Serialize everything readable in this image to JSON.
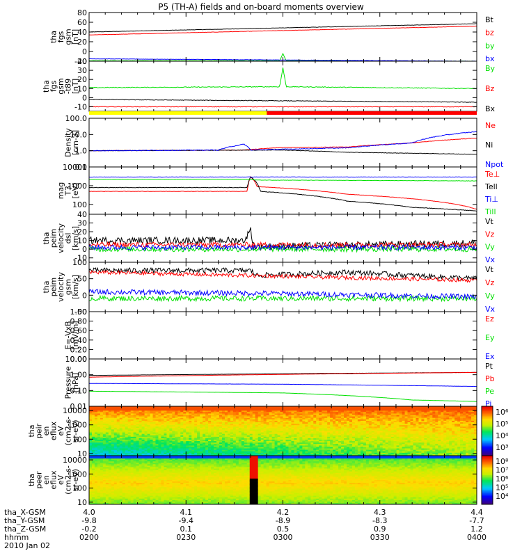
{
  "chart_data": {
    "type": "line",
    "title": "P5 (TH-A) fields and on-board moments overview",
    "x_axis": {
      "rows": [
        {
          "label": "tha_X-GSM",
          "values": [
            "4.0",
            "4.1",
            "4.2",
            "4.3",
            "4.4"
          ]
        },
        {
          "label": "tha_Y-GSM",
          "values": [
            "-9.8",
            "-9.4",
            "-8.9",
            "-8.3",
            "-7.7"
          ]
        },
        {
          "label": "tha_Z-GSM",
          "values": [
            "-0.2",
            "0.1",
            "0.5",
            "0.9",
            "1.2"
          ]
        },
        {
          "label": "hhmm",
          "values": [
            "0200",
            "0230",
            "0300",
            "0330",
            "0400"
          ]
        }
      ],
      "date": "2010 Jan 02"
    },
    "time_range": [
      0,
      120
    ],
    "panels": [
      {
        "id": "fgs_gsm",
        "ylabel": [
          "tha",
          "fgs",
          "gsm",
          "[nT]"
        ],
        "yrange": [
          -20,
          80
        ],
        "ticks": [
          -20,
          0,
          20,
          40,
          60,
          80
        ],
        "series": [
          {
            "name": "Bt",
            "color": "#000000",
            "profile": [
              [
                0,
                40
              ],
              [
                120,
                57
              ]
            ],
            "noise": 0.3
          },
          {
            "name": "bz",
            "color": "#ff0000",
            "profile": [
              [
                0,
                34
              ],
              [
                120,
                52
              ]
            ],
            "noise": 0.3
          },
          {
            "name": "by",
            "color": "#00e000",
            "profile": [
              [
                0,
                -19
              ],
              [
                59,
                -19
              ],
              [
                60,
                -4
              ],
              [
                61,
                -19
              ],
              [
                120,
                -20
              ]
            ],
            "noise": 0.3
          },
          {
            "name": "bx",
            "color": "#0000ff",
            "profile": [
              [
                0,
                -15
              ],
              [
                120,
                -20
              ]
            ],
            "noise": 0.3
          }
        ]
      },
      {
        "id": "fgs_gsm_t89",
        "ylabel": [
          "tha",
          "fgs",
          "gsm",
          "-t89",
          "[nT]"
        ],
        "yrange": [
          -15,
          40
        ],
        "ticks": [
          -10,
          0,
          10,
          20,
          30,
          40
        ],
        "series": [
          {
            "name": "By",
            "color": "#00e000",
            "profile": [
              [
                0,
                11
              ],
              [
                59,
                12
              ],
              [
                60,
                33
              ],
              [
                61,
                12
              ],
              [
                120,
                10
              ]
            ],
            "noise": 0.4
          },
          {
            "name": "Bz",
            "color": "#ff0000",
            "profile": [
              [
                0,
                -10
              ],
              [
                120,
                -10
              ]
            ],
            "noise": 0.3
          },
          {
            "name": "Bx",
            "color": "#000000",
            "profile": [
              [
                0,
                -2
              ],
              [
                120,
                -5
              ]
            ],
            "noise": 0.3
          }
        ]
      },
      {
        "id": "density",
        "ylabel": [
          "Density",
          "[cm-3]"
        ],
        "scale": "log",
        "yrange": [
          0.1,
          100
        ],
        "ticks": [
          0.1,
          1,
          10,
          100
        ],
        "tick_labels": [
          "0.1",
          "1.0",
          "10.0",
          "100.0"
        ],
        "series": [
          {
            "name": "Ne",
            "color": "#ff0000",
            "profile": [
              [
                0,
                1.0
              ],
              [
                48,
                1.1
              ],
              [
                60,
                1.6
              ],
              [
                80,
                1.7
              ],
              [
                100,
                3.0
              ],
              [
                120,
                6.0
              ]
            ],
            "noise": 0.03
          },
          {
            "name": "Ni",
            "color": "#000000",
            "profile": [
              [
                0,
                1.0
              ],
              [
                60,
                1.1
              ],
              [
                80,
                0.8
              ],
              [
                100,
                0.7
              ],
              [
                120,
                0.6
              ]
            ],
            "noise": 0.03
          },
          {
            "name": "Npot",
            "color": "#0000ff",
            "profile": [
              [
                0,
                1.0
              ],
              [
                40,
                1.1
              ],
              [
                48,
                2.5
              ],
              [
                50,
                1.1
              ],
              [
                80,
                1.5
              ],
              [
                100,
                3.0
              ],
              [
                120,
                15
              ]
            ],
            "noise": 0.05
          }
        ]
      },
      {
        "id": "temperature",
        "ylabel": [
          "mag",
          "T3",
          "[eV]"
        ],
        "scale": "log",
        "yrange": [
          30,
          10000
        ],
        "ticks": [
          100,
          1000,
          10000
        ],
        "tick_labels": [
          "100",
          "1000",
          "10000"
        ],
        "series": [
          {
            "name": "Te⊥",
            "color": "#ff0000",
            "profile": [
              [
                0,
                500
              ],
              [
                49,
                500
              ],
              [
                50,
                3000
              ],
              [
                52,
                900
              ],
              [
                80,
                350
              ],
              [
                100,
                200
              ],
              [
                120,
                55
              ]
            ],
            "noise": 0.02
          },
          {
            "name": "Tell",
            "color": "#000000",
            "profile": [
              [
                0,
                800
              ],
              [
                49,
                800
              ],
              [
                50,
                3000
              ],
              [
                53,
                500
              ],
              [
                80,
                150
              ],
              [
                100,
                70
              ],
              [
                120,
                45
              ]
            ],
            "noise": 0.03
          },
          {
            "name": "Ti⊥",
            "color": "#0000ff",
            "profile": [
              [
                0,
                2900
              ],
              [
                120,
                2900
              ]
            ],
            "noise": 0.02
          },
          {
            "name": "Till",
            "color": "#00e000",
            "profile": [
              [
                0,
                2200
              ],
              [
                49,
                2200
              ],
              [
                52,
                2000
              ],
              [
                120,
                1800
              ]
            ],
            "noise": 0.02
          }
        ]
      },
      {
        "id": "peim_velocity_1",
        "ylabel": [
          "tha",
          "peim",
          "velocity",
          "dsl",
          "[km/s]"
        ],
        "yrange": [
          -15,
          40
        ],
        "ticks": [
          -10,
          0,
          10,
          20,
          30,
          40
        ],
        "series": [
          {
            "name": "Vt",
            "color": "#000000",
            "profile": [
              [
                0,
                10
              ],
              [
                48,
                10
              ],
              [
                50,
                22
              ],
              [
                51,
                3
              ],
              [
                120,
                7
              ]
            ],
            "noise": 4
          },
          {
            "name": "Vz",
            "color": "#ff0000",
            "profile": [
              [
                0,
                5
              ],
              [
                120,
                5
              ]
            ],
            "noise": 3
          },
          {
            "name": "Vy",
            "color": "#00e000",
            "profile": [
              [
                0,
                0
              ],
              [
                120,
                0
              ]
            ],
            "noise": 3
          },
          {
            "name": "Vx",
            "color": "#0000ff",
            "profile": [
              [
                0,
                2
              ],
              [
                120,
                2
              ]
            ],
            "noise": 3
          }
        ]
      },
      {
        "id": "peim_velocity_2",
        "ylabel": [
          "tha",
          "peim",
          "velocity",
          "gsm",
          "[km/s]"
        ],
        "yrange": [
          -50,
          100
        ],
        "ticks": [
          -50,
          0,
          50,
          100
        ],
        "series": [
          {
            "name": "Vt",
            "color": "#000000",
            "profile": [
              [
                0,
                75
              ],
              [
                50,
                75
              ],
              [
                52,
                60
              ],
              [
                80,
                70
              ],
              [
                120,
                50
              ]
            ],
            "noise": 8
          },
          {
            "name": "Vz",
            "color": "#ff0000",
            "profile": [
              [
                0,
                70
              ],
              [
                120,
                45
              ]
            ],
            "noise": 6
          },
          {
            "name": "Vy",
            "color": "#00e000",
            "profile": [
              [
                0,
                -10
              ],
              [
                120,
                -10
              ]
            ],
            "noise": 8
          },
          {
            "name": "Vx",
            "color": "#0000ff",
            "profile": [
              [
                0,
                10
              ],
              [
                60,
                5
              ],
              [
                120,
                -5
              ]
            ],
            "noise": 8
          }
        ]
      },
      {
        "id": "efield",
        "ylabel": [
          "E=-VxB",
          "[mV/m]"
        ],
        "yrange": [
          0,
          1
        ],
        "ticks": [
          0,
          0.2,
          0.4,
          0.6,
          0.8,
          1.0
        ],
        "tick_labels": [
          "0.00",
          "0.20",
          "0.40",
          "0.60",
          "0.80",
          "1.00"
        ],
        "series": [
          {
            "name": "Ez",
            "color": "#ff0000",
            "profile": [],
            "noise": 0
          },
          {
            "name": "Ey",
            "color": "#00e000",
            "profile": [],
            "noise": 0
          },
          {
            "name": "Ex",
            "color": "#0000ff",
            "profile": [],
            "noise": 0
          }
        ]
      },
      {
        "id": "pressure",
        "ylabel": [
          "Pressure",
          "[nPa]"
        ],
        "scale": "log",
        "yrange": [
          0.01,
          10
        ],
        "ticks": [
          0.01,
          0.1,
          1,
          10
        ],
        "tick_labels": [
          "0.01",
          "0.10",
          "1.00",
          "10.00"
        ],
        "series": [
          {
            "name": "Pt",
            "color": "#000000",
            "profile": [
              [
                0,
                0.9
              ],
              [
                120,
                1.4
              ]
            ],
            "noise": 0.01
          },
          {
            "name": "Pb",
            "color": "#ff0000",
            "profile": [
              [
                0,
                0.7
              ],
              [
                120,
                1.4
              ]
            ],
            "noise": 0.01
          },
          {
            "name": "Pe",
            "color": "#00e000",
            "profile": [
              [
                0,
                0.09
              ],
              [
                60,
                0.07
              ],
              [
                100,
                0.025
              ],
              [
                120,
                0.02
              ]
            ],
            "noise": 0.01
          },
          {
            "name": "Pi",
            "color": "#0000ff",
            "profile": [
              [
                0,
                0.28
              ],
              [
                60,
                0.25
              ],
              [
                120,
                0.18
              ]
            ],
            "noise": 0.01
          }
        ]
      },
      {
        "id": "peir_spectrogram",
        "type": "heatmap",
        "ylabel": [
          "tha",
          "peir",
          "en",
          "eflux",
          "eV",
          "(cm2-s-",
          "sr-eV)"
        ],
        "scale": "log",
        "yrange": [
          7,
          20000
        ],
        "ticks": [
          10,
          100,
          1000,
          10000
        ],
        "tick_labels": [
          "10",
          "100",
          "1000",
          "10000"
        ],
        "colorbar": {
          "ticks": [
            "10³",
            "10⁴",
            "10⁵",
            "10⁶"
          ]
        }
      },
      {
        "id": "peer_spectrogram",
        "type": "heatmap",
        "ylabel": [
          "tha",
          "peer",
          "en",
          "eflux",
          "eV",
          "(cm2-s-",
          "sr-eV)"
        ],
        "scale": "log",
        "yrange": [
          7,
          20000
        ],
        "ticks": [
          10,
          100,
          1000,
          10000
        ],
        "tick_labels": [
          "10",
          "100",
          "1000",
          "10000"
        ],
        "colorbar": {
          "ticks": [
            "10⁴",
            "10⁵",
            "10⁶",
            "10⁷",
            "10⁸"
          ]
        }
      }
    ],
    "mode_bar": [
      {
        "color": "#ffff00",
        "from": 0,
        "to": 55
      },
      {
        "color": "#ff0000",
        "from": 55,
        "to": 120
      }
    ]
  }
}
